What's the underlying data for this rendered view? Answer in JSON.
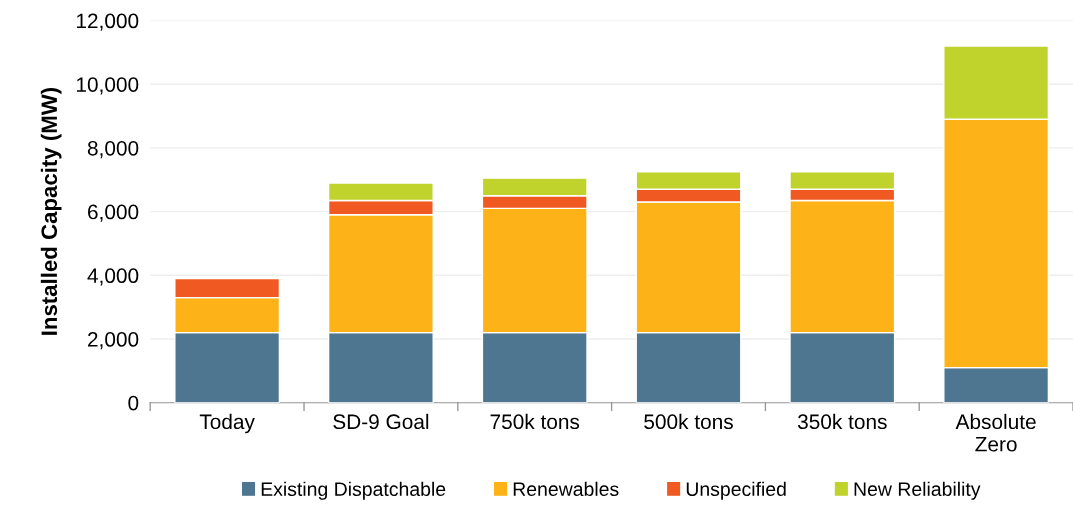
{
  "chart_data": {
    "type": "bar",
    "stacked": true,
    "ylabel": "Installed Capacity (MW)",
    "categories": [
      "Today",
      "SD-9 Goal",
      "750k tons",
      "500k tons",
      "350k tons",
      "Absolute\nZero"
    ],
    "series": [
      {
        "name": "Existing Dispatchable",
        "color": "#4f7690",
        "values": [
          2200,
          2200,
          2200,
          2200,
          2200,
          1100
        ]
      },
      {
        "name": "Renewables",
        "color": "#fdb317",
        "values": [
          1100,
          3700,
          3900,
          4100,
          4150,
          7800
        ]
      },
      {
        "name": "Unspecified",
        "color": "#f05a22",
        "values": [
          600,
          450,
          400,
          400,
          350,
          0
        ]
      },
      {
        "name": "New Reliability",
        "color": "#c0d22c",
        "values": [
          0,
          550,
          550,
          550,
          550,
          2300
        ]
      }
    ],
    "ylim": [
      0,
      12000
    ],
    "yticks": [
      {
        "value": 0,
        "label": "0"
      },
      {
        "value": 2000,
        "label": "2,000"
      },
      {
        "value": 4000,
        "label": "4,000"
      },
      {
        "value": 6000,
        "label": "6,000"
      },
      {
        "value": 8000,
        "label": "8,000"
      },
      {
        "value": 10000,
        "label": "10,000"
      },
      {
        "value": 12000,
        "label": "12,000"
      }
    ],
    "grid": "y",
    "legend": "bottom"
  }
}
